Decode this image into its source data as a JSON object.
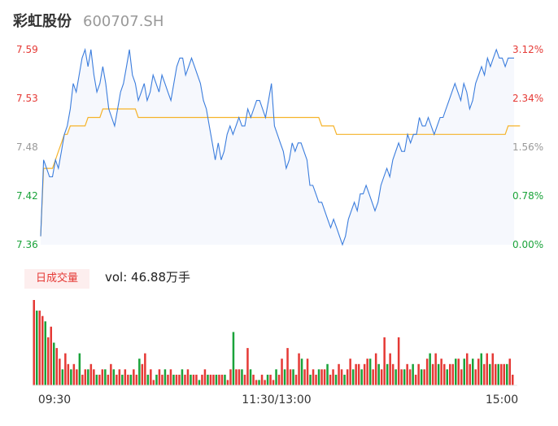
{
  "stock": {
    "name": "彩虹股份",
    "code": "600707.SH"
  },
  "colors": {
    "up": "#e53935",
    "down": "#1aa33a",
    "neutral": "#999999",
    "price_line": "#3b7ddd",
    "avg_line": "#f5b32a",
    "area_fill": "#f6f8fd"
  },
  "volume": {
    "period_label": "日成交量",
    "vol_label": "vol: 46.88万手"
  },
  "chart_data": [
    {
      "type": "line",
      "title": "",
      "prev_close": 7.36,
      "ylim": [
        7.36,
        7.59
      ],
      "y_ticks": [
        "7.59",
        "7.53",
        "7.48",
        "7.42",
        "7.36"
      ],
      "y_ticks_right": [
        "3.12%",
        "2.34%",
        "1.56%",
        "0.78%",
        "0.00%"
      ],
      "x_ticks": [
        "09:30",
        "11:30/13:00",
        "15:00"
      ],
      "series": [
        {
          "values": [
            7.37,
            7.46,
            7.45,
            7.44,
            7.44,
            7.46,
            7.45,
            7.47,
            7.49,
            7.5,
            7.52,
            7.55,
            7.54,
            7.56,
            7.58,
            7.59,
            7.57,
            7.59,
            7.56,
            7.54,
            7.55,
            7.57,
            7.55,
            7.52,
            7.51,
            7.5,
            7.52,
            7.54,
            7.55,
            7.57,
            7.59,
            7.56,
            7.55,
            7.53,
            7.54,
            7.55,
            7.53,
            7.54,
            7.56,
            7.55,
            7.54,
            7.56,
            7.55,
            7.54,
            7.53,
            7.55,
            7.57,
            7.58,
            7.58,
            7.56,
            7.57,
            7.58,
            7.57,
            7.56,
            7.55,
            7.53,
            7.52,
            7.5,
            7.48,
            7.46,
            7.48,
            7.46,
            7.47,
            7.49,
            7.5,
            7.49,
            7.5,
            7.51,
            7.5,
            7.5,
            7.52,
            7.51,
            7.52,
            7.53,
            7.53,
            7.52,
            7.51,
            7.53,
            7.55,
            7.5,
            7.49,
            7.48,
            7.47,
            7.45,
            7.46,
            7.48,
            7.47,
            7.48,
            7.48,
            7.47,
            7.46,
            7.43,
            7.43,
            7.42,
            7.41,
            7.41,
            7.4,
            7.39,
            7.38,
            7.39,
            7.38,
            7.37,
            7.36,
            7.37,
            7.39,
            7.4,
            7.41,
            7.4,
            7.42,
            7.42,
            7.43,
            7.42,
            7.41,
            7.4,
            7.41,
            7.43,
            7.44,
            7.45,
            7.44,
            7.46,
            7.47,
            7.48,
            7.47,
            7.47,
            7.49,
            7.48,
            7.49,
            7.49,
            7.51,
            7.5,
            7.5,
            7.51,
            7.5,
            7.49,
            7.5,
            7.51,
            7.51,
            7.52,
            7.53,
            7.54,
            7.55,
            7.54,
            7.53,
            7.55,
            7.54,
            7.52,
            7.53,
            7.55,
            7.56,
            7.57,
            7.56,
            7.58,
            7.57,
            7.58,
            7.59,
            7.58,
            7.58,
            7.57,
            7.58,
            7.58,
            7.58
          ]
        },
        {
          "values": [
            7.37,
            7.45,
            7.45,
            7.45,
            7.45,
            7.46,
            7.47,
            7.48,
            7.49,
            7.49,
            7.5,
            7.5,
            7.5,
            7.5,
            7.5,
            7.5,
            7.51,
            7.51,
            7.51,
            7.51,
            7.51,
            7.52,
            7.52,
            7.52,
            7.52,
            7.52,
            7.52,
            7.52,
            7.52,
            7.52,
            7.52,
            7.52,
            7.52,
            7.51,
            7.51,
            7.51,
            7.51,
            7.51,
            7.51,
            7.51,
            7.51,
            7.51,
            7.51,
            7.51,
            7.51,
            7.51,
            7.51,
            7.51,
            7.51,
            7.51,
            7.51,
            7.51,
            7.51,
            7.51,
            7.51,
            7.51,
            7.51,
            7.51,
            7.51,
            7.51,
            7.51,
            7.51,
            7.51,
            7.51,
            7.51,
            7.51,
            7.51,
            7.51,
            7.51,
            7.51,
            7.51,
            7.51,
            7.51,
            7.51,
            7.51,
            7.51,
            7.51,
            7.51,
            7.51,
            7.51,
            7.51,
            7.51,
            7.51,
            7.51,
            7.51,
            7.51,
            7.51,
            7.51,
            7.51,
            7.51,
            7.51,
            7.51,
            7.51,
            7.51,
            7.51,
            7.5,
            7.5,
            7.5,
            7.5,
            7.5,
            7.49,
            7.49,
            7.49,
            7.49,
            7.49,
            7.49,
            7.49,
            7.49,
            7.49,
            7.49,
            7.49,
            7.49,
            7.49,
            7.49,
            7.49,
            7.49,
            7.49,
            7.49,
            7.49,
            7.49,
            7.49,
            7.49,
            7.49,
            7.49,
            7.49,
            7.49,
            7.49,
            7.49,
            7.49,
            7.49,
            7.49,
            7.49,
            7.49,
            7.49,
            7.49,
            7.49,
            7.49,
            7.49,
            7.49,
            7.49,
            7.49,
            7.49,
            7.49,
            7.49,
            7.49,
            7.49,
            7.49,
            7.49,
            7.49,
            7.49,
            7.49,
            7.49,
            7.49,
            7.49,
            7.49,
            7.49,
            7.49,
            7.49,
            7.5,
            7.5,
            7.5,
            7.5,
            7.5
          ]
        }
      ]
    },
    {
      "type": "bar",
      "title": "",
      "unit": "万手",
      "values": [
        1.6,
        1.4,
        1.4,
        1.3,
        1.2,
        0.9,
        1.1,
        0.8,
        0.7,
        0.5,
        0.3,
        0.6,
        0.4,
        0.3,
        0.4,
        0.3,
        0.6,
        0.2,
        0.3,
        0.3,
        0.4,
        0.3,
        0.2,
        0.2,
        0.3,
        0.3,
        0.2,
        0.4,
        0.3,
        0.2,
        0.3,
        0.2,
        0.3,
        0.2,
        0.2,
        0.3,
        0.2,
        0.5,
        0.4,
        0.6,
        0.2,
        0.3,
        0.1,
        0.2,
        0.3,
        0.2,
        0.3,
        0.2,
        0.3,
        0.2,
        0.2,
        0.2,
        0.3,
        0.2,
        0.3,
        0.2,
        0.2,
        0.2,
        0.1,
        0.2,
        0.3,
        0.2,
        0.2,
        0.2,
        0.2,
        0.2,
        0.2,
        0.2,
        0.1,
        0.3,
        1.0,
        0.3,
        0.3,
        0.3,
        0.2,
        0.7,
        0.3,
        0.2,
        0.1,
        0.1,
        0.2,
        0.1,
        0.2,
        0.2,
        0.1,
        0.3,
        0.2,
        0.5,
        0.3,
        0.7,
        0.3,
        0.3,
        0.2,
        0.6,
        0.5,
        0.3,
        0.5,
        0.2,
        0.3,
        0.2,
        0.3,
        0.3,
        0.3,
        0.4,
        0.2,
        0.3,
        0.2,
        0.4,
        0.3,
        0.2,
        0.3,
        0.5,
        0.3,
        0.4,
        0.4,
        0.3,
        0.4,
        0.5,
        0.5,
        0.3,
        0.6,
        0.4,
        0.3,
        0.9,
        0.4,
        0.6,
        0.4,
        0.3,
        0.9,
        0.3,
        0.3,
        0.4,
        0.3,
        0.4,
        0.2,
        0.4,
        0.3,
        0.3,
        0.5,
        0.6,
        0.4,
        0.6,
        0.4,
        0.5,
        0.4,
        0.3,
        0.4,
        0.4,
        0.5,
        0.5,
        0.3,
        0.5,
        0.6,
        0.4,
        0.5,
        0.3,
        0.5,
        0.6,
        0.4,
        0.6,
        0.4,
        0.6,
        0.4,
        0.4,
        0.4,
        0.4,
        0.4,
        0.5,
        0.2
      ],
      "direction": "pattern"
    }
  ]
}
